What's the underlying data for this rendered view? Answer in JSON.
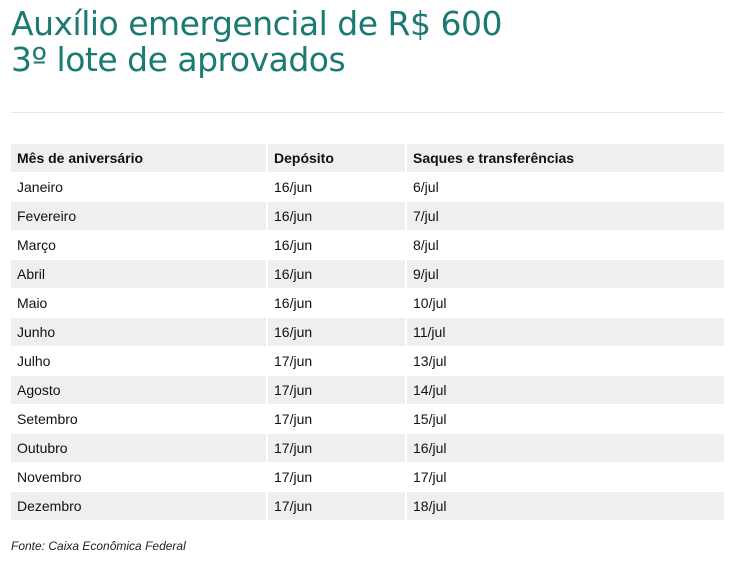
{
  "title": {
    "line1": "Auxílio emergencial de R$ 600",
    "line2": "3º lote de aprovados"
  },
  "table": {
    "headers": [
      "Mês de aniversário",
      "Depósito",
      "Saques e transferências"
    ],
    "rows": [
      [
        "Janeiro",
        "16/jun",
        "6/jul"
      ],
      [
        "Fevereiro",
        "16/jun",
        "7/jul"
      ],
      [
        "Março",
        "16/jun",
        "8/jul"
      ],
      [
        "Abril",
        "16/jun",
        "9/jul"
      ],
      [
        "Maio",
        "16/jun",
        "10/jul"
      ],
      [
        "Junho",
        "16/jun",
        "11/jul"
      ],
      [
        "Julho",
        "17/jun",
        "13/jul"
      ],
      [
        "Agosto",
        "17/jun",
        "14/jul"
      ],
      [
        "Setembro",
        "17/jun",
        "15/jul"
      ],
      [
        "Outubro",
        "17/jun",
        "16/jul"
      ],
      [
        "Novembro",
        "17/jun",
        "17/jul"
      ],
      [
        "Dezembro",
        "17/jun",
        "18/jul"
      ]
    ]
  },
  "footer": "Fonte: Caixa Econômica Federal"
}
